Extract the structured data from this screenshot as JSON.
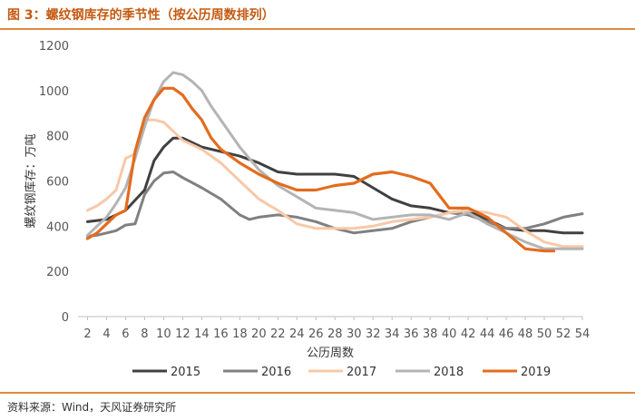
{
  "figure": {
    "title": "图 3：螺纹钢库存的季节性（按公历周数排列）",
    "source": "资料来源：Wind，天风证券研究所"
  },
  "chart_data": {
    "type": "line",
    "xlabel": "公历周数",
    "ylabel": "螺纹钢库存：万吨",
    "xlim": [
      1,
      54
    ],
    "ylim": [
      0,
      1200
    ],
    "xticks": [
      2,
      4,
      6,
      8,
      10,
      12,
      14,
      16,
      18,
      20,
      22,
      24,
      26,
      28,
      30,
      32,
      34,
      36,
      38,
      40,
      42,
      44,
      46,
      48,
      50,
      52,
      54
    ],
    "yticks": [
      0,
      200,
      400,
      600,
      800,
      1000,
      1200
    ],
    "grid": false,
    "legend_position": "bottom",
    "series": [
      {
        "name": "2015",
        "color": "#404040",
        "x": [
          2,
          4,
          6,
          8,
          9,
          10,
          11,
          12,
          14,
          16,
          18,
          20,
          22,
          24,
          26,
          28,
          30,
          32,
          34,
          36,
          38,
          40,
          42,
          44,
          46,
          48,
          50,
          52,
          54
        ],
        "y": [
          420,
          430,
          470,
          560,
          690,
          750,
          790,
          790,
          750,
          730,
          710,
          680,
          640,
          630,
          630,
          630,
          620,
          570,
          520,
          490,
          480,
          460,
          470,
          430,
          390,
          380,
          380,
          370,
          370
        ]
      },
      {
        "name": "2016",
        "color": "#808080",
        "x": [
          2,
          3,
          4,
          5,
          6,
          7,
          8,
          9,
          10,
          11,
          12,
          14,
          16,
          18,
          19,
          20,
          22,
          24,
          26,
          28,
          30,
          32,
          34,
          36,
          38,
          40,
          42,
          44,
          46,
          48,
          50,
          52,
          54
        ],
        "y": [
          355,
          360,
          370,
          380,
          405,
          410,
          540,
          600,
          635,
          640,
          615,
          570,
          520,
          450,
          430,
          440,
          450,
          440,
          420,
          390,
          370,
          380,
          390,
          420,
          440,
          460,
          450,
          420,
          390,
          390,
          410,
          440,
          455
        ]
      },
      {
        "name": "2017",
        "color": "#f8c8a8",
        "x": [
          2,
          3,
          4,
          5,
          6,
          7,
          8,
          9,
          10,
          11,
          12,
          14,
          16,
          18,
          20,
          22,
          24,
          26,
          28,
          30,
          32,
          34,
          36,
          38,
          40,
          42,
          44,
          46,
          48,
          50,
          52,
          54
        ],
        "y": [
          470,
          490,
          520,
          560,
          700,
          720,
          870,
          870,
          860,
          820,
          780,
          740,
          680,
          600,
          520,
          470,
          410,
          390,
          390,
          390,
          400,
          420,
          430,
          440,
          460,
          470,
          460,
          440,
          380,
          330,
          310,
          310
        ]
      },
      {
        "name": "2018",
        "color": "#b4b4b4",
        "x": [
          2,
          3,
          4,
          5,
          6,
          7,
          8,
          9,
          10,
          11,
          12,
          13,
          14,
          15,
          16,
          18,
          20,
          22,
          24,
          26,
          28,
          30,
          32,
          34,
          36,
          38,
          40,
          42,
          44,
          46,
          48,
          50,
          52,
          54
        ],
        "y": [
          360,
          400,
          440,
          500,
          570,
          700,
          840,
          960,
          1040,
          1080,
          1070,
          1040,
          1000,
          930,
          870,
          750,
          650,
          580,
          530,
          480,
          470,
          460,
          430,
          440,
          450,
          450,
          430,
          460,
          410,
          370,
          330,
          300,
          300,
          300
        ]
      },
      {
        "name": "2019",
        "color": "#e36c1f",
        "x": [
          2,
          3,
          4,
          5,
          6,
          7,
          8,
          9,
          10,
          11,
          12,
          13,
          14,
          15,
          16,
          18,
          20,
          22,
          24,
          26,
          28,
          30,
          32,
          34,
          36,
          38,
          40,
          42,
          44,
          46,
          48,
          50,
          51
        ],
        "y": [
          345,
          370,
          410,
          450,
          470,
          730,
          880,
          960,
          1010,
          1010,
          980,
          920,
          870,
          790,
          740,
          680,
          630,
          590,
          560,
          560,
          580,
          590,
          630,
          640,
          620,
          590,
          480,
          480,
          440,
          370,
          300,
          290,
          290
        ]
      }
    ]
  }
}
